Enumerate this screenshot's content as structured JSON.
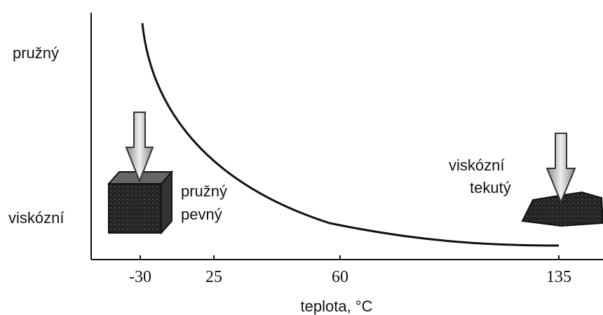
{
  "y_labels": {
    "top": "pružný",
    "bottom": "viskózní"
  },
  "x_axis": {
    "ticks": [
      "-30",
      "25",
      "60",
      "135"
    ],
    "label": "teplota, °C"
  },
  "left_state": {
    "line1": "pružný",
    "line2": "pevný"
  },
  "right_state": {
    "line1": "viskózní",
    "line2": "tekutý"
  }
}
